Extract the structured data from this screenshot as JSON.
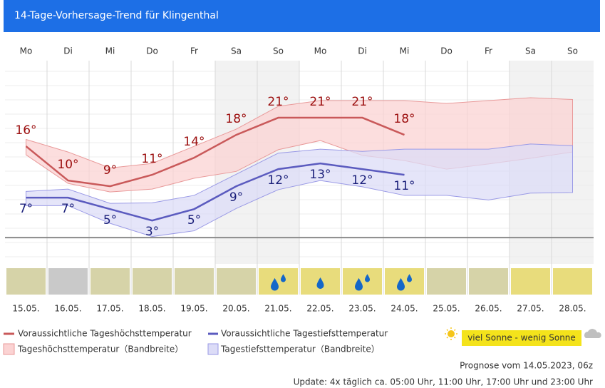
{
  "header": {
    "title": "14-Tage-Vorhersage-Trend für Klingenthal"
  },
  "chart_data": {
    "type": "line",
    "weekdays": [
      "Mo",
      "Di",
      "Mi",
      "Do",
      "Fr",
      "Sa",
      "So",
      "Mo",
      "Di",
      "Mi",
      "Do",
      "Fr",
      "Sa",
      "So"
    ],
    "categories": [
      "15.05.",
      "16.05.",
      "17.05.",
      "18.05.",
      "19.05.",
      "20.05.",
      "21.05.",
      "22.05.",
      "23.05.",
      "24.05.",
      "25.05.",
      "26.05.",
      "27.05.",
      "28.05."
    ],
    "shaded": [
      false,
      false,
      false,
      false,
      false,
      true,
      true,
      false,
      false,
      false,
      false,
      false,
      true,
      true
    ],
    "ylim": [
      -4.6,
      31
    ],
    "series": [
      {
        "name": "Voraussichtliche Tageshöchsttemperatur",
        "color": "#c9595a",
        "label_color": "#9b0d0d",
        "values": [
          16,
          10,
          9,
          11,
          14,
          18,
          21,
          21,
          21,
          18,
          null,
          null,
          null,
          null
        ],
        "value_labels": [
          "16°",
          "10°",
          "9°",
          "11°",
          "14°",
          "18°",
          "21°",
          "21°",
          "21°",
          "18°",
          null,
          null,
          null,
          null
        ]
      },
      {
        "name": "Voraussichtliche Tagestiefsttemperatur",
        "color": "#5b5bbf",
        "label_color": "#1a1f7a",
        "values": [
          7,
          7,
          5,
          3,
          5,
          9,
          12,
          13,
          12,
          11,
          null,
          null,
          null,
          null
        ],
        "value_labels": [
          "7°",
          "7°",
          "5°",
          "3°",
          "5°",
          "9°",
          "12°",
          "13°",
          "12°",
          "11°",
          null,
          null,
          null,
          null
        ]
      }
    ],
    "bands": [
      {
        "name": "Tageshöchsttemperatur（Bandbreite）",
        "fill": "#fbd3d3",
        "stroke": "#e99a9a",
        "upper": [
          17.2,
          15,
          12.2,
          13,
          16,
          19,
          23,
          24,
          24,
          24,
          23.5,
          24,
          24.5,
          24.2
        ],
        "lower": [
          14.5,
          9.5,
          8,
          8.5,
          10.4,
          11.6,
          15.4,
          17,
          14.4,
          13.5,
          12,
          12.9,
          13.9,
          15
        ]
      },
      {
        "name": "Tagestiefsttemperatur（Bandbreite）",
        "fill": "#dcdcf7",
        "stroke": "#9a9ae6",
        "upper": [
          8.1,
          8.5,
          6,
          6.1,
          7.4,
          11.1,
          14.8,
          15.5,
          15.1,
          15.5,
          15.5,
          15.5,
          16.4,
          16.1
        ],
        "lower": [
          5.6,
          5.6,
          2.5,
          0.2,
          1.2,
          5.1,
          8.4,
          10,
          8.9,
          7.4,
          7.4,
          6.6,
          7.8,
          7.9
        ]
      }
    ],
    "tile_colors": [
      "#d6d3a8",
      "#c9c9c9",
      "#d6d3a8",
      "#d6d3a8",
      "#d6d3a8",
      "#d6d3a8",
      "#e8dc7c",
      "#e8dc7c",
      "#e8dc7c",
      "#e8dc7c",
      "#d6d3a8",
      "#d6d3a8",
      "#e8dc7c",
      "#e8dc7c"
    ],
    "rain_drops": [
      0,
      0,
      0,
      0,
      0,
      0,
      2,
      1,
      2,
      2,
      0,
      0,
      0,
      0
    ]
  },
  "sun_scale": "viel Sonne - wenig Sonne",
  "footer": {
    "prognose": "Prognose vom 14.05.2023, 06z",
    "update": "Update: 4x täglich ca. 05:00 Uhr, 11:00 Uhr, 17:00 Uhr und 23:00 Uhr"
  }
}
